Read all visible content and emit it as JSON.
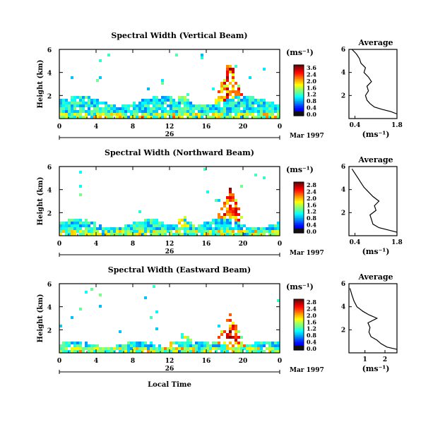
{
  "figure": {
    "date_label": "Mar 1997",
    "x_axis_label": "Local Time",
    "y_axis_label": "Height (km)",
    "colorbar_unit": "(ms⁻¹)",
    "profile_title": "Average",
    "profile_xlabel": "(ms⁻¹)"
  },
  "chart_data": [
    {
      "type": "heatmap",
      "title": "Spectral Width (Vertical Beam)",
      "xlabel": "Local Time",
      "ylabel": "Height (km)",
      "x_ticks": [
        "0",
        "4",
        "8",
        "12",
        "16",
        "20",
        "0"
      ],
      "x_day_label": "26",
      "date_label": "Mar 1997",
      "y_ticks": [
        "2",
        "4",
        "6"
      ],
      "xlim": [
        0,
        24
      ],
      "ylim": [
        0,
        6
      ],
      "colorbar_ticks": [
        "3.6",
        "2.4",
        "2.0",
        "1.6",
        "1.2",
        "0.8",
        "0.4",
        "0.0"
      ],
      "colorbar_range": [
        0,
        3.6
      ],
      "profile": {
        "title": "Average",
        "xlabel": "(ms⁻¹)",
        "x_ticks": [
          "0.4",
          "1.8"
        ],
        "xlim": [
          0.2,
          1.8
        ],
        "y_ticks": [
          "2",
          "4",
          "6"
        ],
        "ylim": [
          0,
          6
        ],
        "points": [
          [
            1.8,
            0.4
          ],
          [
            1.6,
            0.6
          ],
          [
            1.3,
            0.8
          ],
          [
            1.05,
            1.0
          ],
          [
            0.9,
            1.3
          ],
          [
            0.8,
            1.6
          ],
          [
            0.75,
            2.0
          ],
          [
            0.85,
            2.4
          ],
          [
            0.8,
            2.8
          ],
          [
            0.95,
            3.2
          ],
          [
            0.85,
            3.6
          ],
          [
            0.7,
            4.0
          ],
          [
            0.75,
            4.4
          ],
          [
            0.6,
            4.8
          ],
          [
            0.55,
            5.2
          ],
          [
            0.45,
            5.6
          ],
          [
            0.3,
            6.0
          ]
        ]
      }
    },
    {
      "type": "heatmap",
      "title": "Spectral Width (Northward Beam)",
      "xlabel": "Local Time",
      "ylabel": "Height (km)",
      "x_ticks": [
        "0",
        "4",
        "8",
        "12",
        "16",
        "20",
        "0"
      ],
      "x_day_label": "26",
      "date_label": "Mar 1997",
      "y_ticks": [
        "2",
        "4",
        "6"
      ],
      "xlim": [
        0,
        24
      ],
      "ylim": [
        0,
        6
      ],
      "colorbar_ticks": [
        "2.8",
        "2.4",
        "2.0",
        "1.6",
        "1.2",
        "0.8",
        "0.4",
        "0.0"
      ],
      "colorbar_range": [
        0,
        2.8
      ],
      "profile": {
        "title": "Average",
        "xlabel": "(ms⁻¹)",
        "x_ticks": [
          "0.4",
          "1.8"
        ],
        "xlim": [
          0.2,
          1.8
        ],
        "y_ticks": [
          "2",
          "4",
          "6"
        ],
        "ylim": [
          0,
          6
        ],
        "points": [
          [
            1.8,
            0.3
          ],
          [
            1.5,
            0.5
          ],
          [
            1.2,
            0.7
          ],
          [
            1.0,
            1.0
          ],
          [
            0.95,
            1.4
          ],
          [
            0.9,
            1.8
          ],
          [
            1.1,
            2.2
          ],
          [
            1.05,
            2.6
          ],
          [
            1.2,
            3.0
          ],
          [
            1.0,
            3.4
          ],
          [
            0.85,
            3.8
          ],
          [
            0.7,
            4.2
          ],
          [
            0.6,
            4.6
          ],
          [
            0.5,
            5.0
          ],
          [
            0.4,
            5.4
          ],
          [
            0.3,
            5.8
          ]
        ]
      }
    },
    {
      "type": "heatmap",
      "title": "Spectral Width (Eastward Beam)",
      "xlabel": "Local Time",
      "ylabel": "Height (km)",
      "x_ticks": [
        "0",
        "4",
        "8",
        "12",
        "16",
        "20",
        "0"
      ],
      "x_day_label": "26",
      "date_label": "Mar 1997",
      "y_ticks": [
        "2",
        "4",
        "6"
      ],
      "xlim": [
        0,
        24
      ],
      "ylim": [
        0,
        6
      ],
      "colorbar_ticks": [
        "2.8",
        "2.4",
        "2.0",
        "1.6",
        "1.2",
        "0.8",
        "0.4",
        "0.0"
      ],
      "colorbar_range": [
        0,
        2.8
      ],
      "profile": {
        "title": "Average",
        "xlabel": "(ms⁻¹)",
        "x_ticks": [
          "1",
          "2"
        ],
        "xlim": [
          0.2,
          2.6
        ],
        "y_ticks": [
          "2",
          "4",
          "6"
        ],
        "ylim": [
          0,
          6
        ],
        "points": [
          [
            2.6,
            0.3
          ],
          [
            2.1,
            0.5
          ],
          [
            1.8,
            0.8
          ],
          [
            1.6,
            1.1
          ],
          [
            1.3,
            1.4
          ],
          [
            1.2,
            1.8
          ],
          [
            1.25,
            2.2
          ],
          [
            1.15,
            2.6
          ],
          [
            1.6,
            3.0
          ],
          [
            1.2,
            3.3
          ],
          [
            0.9,
            3.6
          ],
          [
            0.6,
            4.0
          ],
          [
            0.45,
            4.5
          ],
          [
            0.35,
            5.0
          ],
          [
            0.25,
            5.6
          ]
        ]
      }
    }
  ]
}
